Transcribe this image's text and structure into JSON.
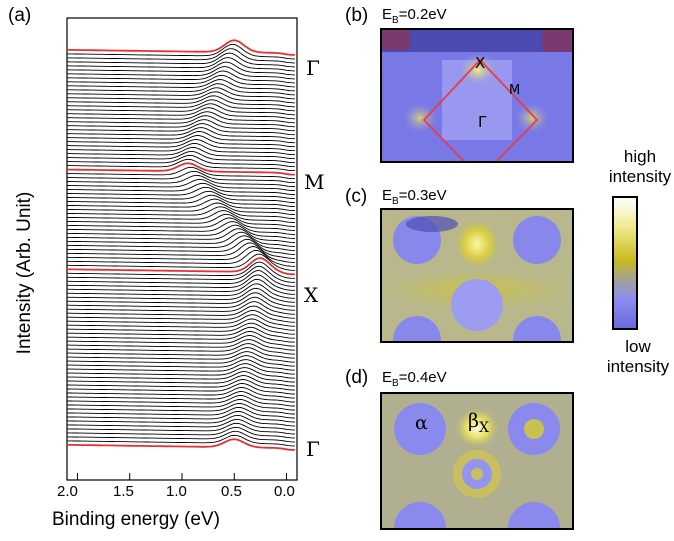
{
  "panel_a": {
    "label": "(a)",
    "ylabel": "Intensity (Arb. Unit)",
    "xlabel": "Binding energy (eV)",
    "xticks": [
      "2.0",
      "1.5",
      "1.0",
      "0.5",
      "0.0"
    ],
    "kpoints": [
      "Γ",
      "M",
      "X",
      "Γ"
    ]
  },
  "panel_b": {
    "label": "(b)",
    "eb_prefix": "E",
    "eb_sub": "B",
    "eb_value": "=0.2eV",
    "labels": {
      "x": "X",
      "m": "M",
      "gamma": "Γ"
    }
  },
  "panel_c": {
    "label": "(c)",
    "eb_prefix": "E",
    "eb_sub": "B",
    "eb_value": "=0.3eV"
  },
  "panel_d": {
    "label": "(d)",
    "eb_prefix": "E",
    "eb_sub": "B",
    "eb_value": "=0.4eV",
    "labels": {
      "alpha": "α",
      "beta": "β",
      "beta_sub": "X"
    }
  },
  "colorbar": {
    "high": [
      "high",
      "intensity"
    ],
    "low": [
      "low",
      "intensity"
    ],
    "colors": [
      "#ffffff",
      "#e8e040",
      "#c8b820",
      "#8c8cf0",
      "#6a6ae0"
    ]
  },
  "chart_data": {
    "type": "line",
    "xlabel": "Binding energy (eV)",
    "ylabel": "Intensity (Arb. Unit)",
    "xlim": [
      2.1,
      -0.1
    ],
    "xticks": [
      2.0,
      1.5,
      1.0,
      0.5,
      0.0
    ],
    "y_ticks_shown": false,
    "grid": false,
    "curve_count": 100,
    "highlighted_curves": [
      {
        "k_point": "Γ",
        "peak_eV": 0.5,
        "color": "#e83030"
      },
      {
        "k_point": "M",
        "peak_eV": 0.9,
        "color": "#e83030"
      },
      {
        "k_point": "X",
        "peak_eV": 0.3,
        "color": "#e83030"
      },
      {
        "k_point": "Γ",
        "peak_eV": 0.5,
        "color": "#e83030"
      }
    ],
    "other_curve_color": "#000000"
  }
}
